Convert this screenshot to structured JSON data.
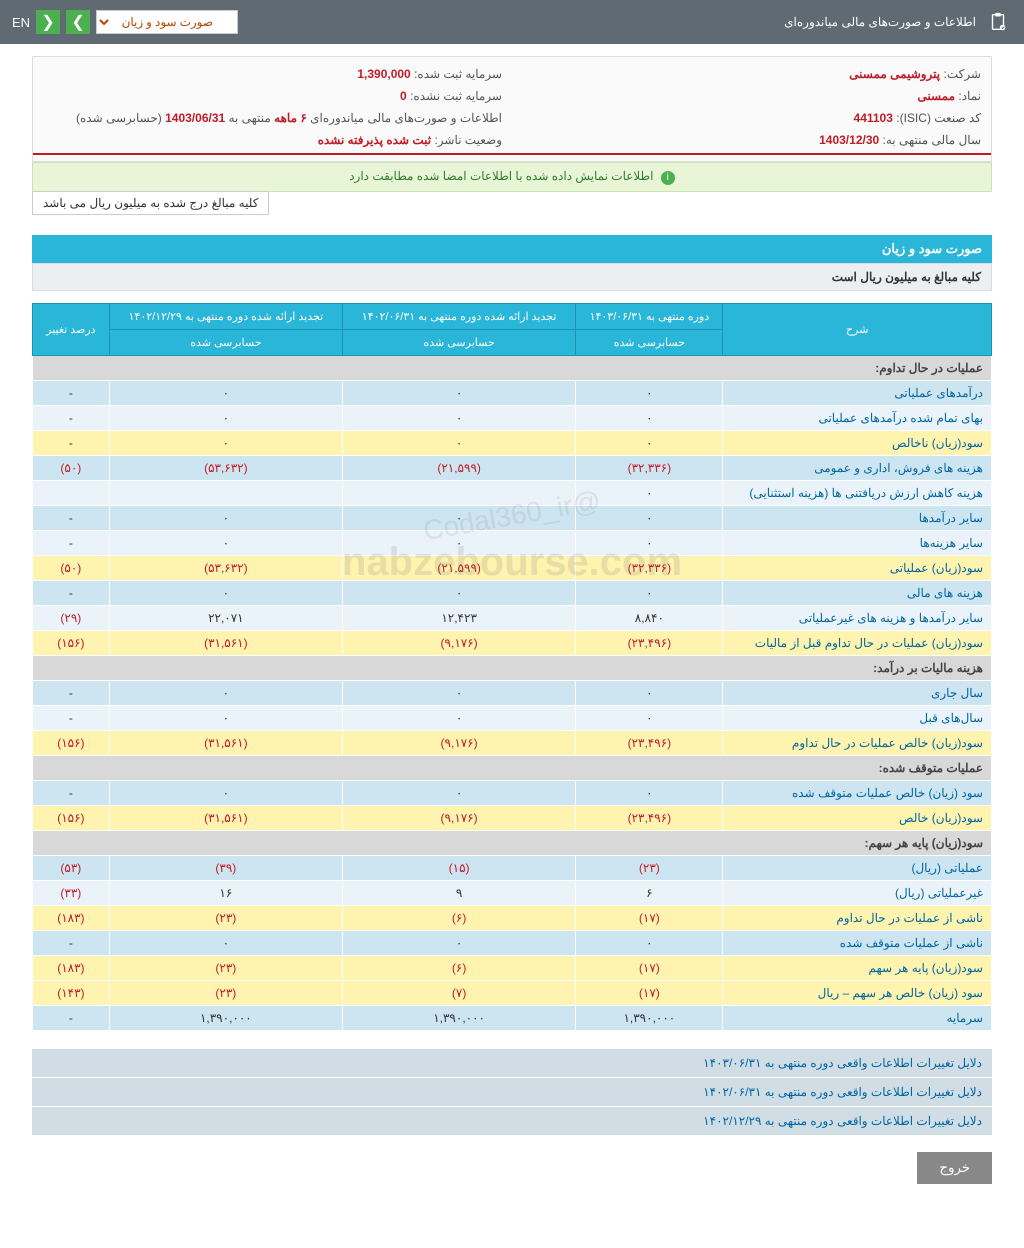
{
  "topbar": {
    "title": "اطلاعات و صورت‌های مالی میاندوره‌ای",
    "dropdown": "صورت سود و زیان",
    "lang": "EN"
  },
  "info": {
    "company_lbl": "شرکت:",
    "company_val": "پتروشیمی ممسنی",
    "capital_lbl": "سرمایه ثبت شده:",
    "capital_val": "1,390,000",
    "symbol_lbl": "نماد:",
    "symbol_val": "ممسنی",
    "uncap_lbl": "سرمایه ثبت نشده:",
    "uncap_val": "0",
    "isic_lbl": "کد صنعت (ISIC):",
    "isic_val": "441103",
    "report_lbl": "اطلاعات و صورت‌های مالی میاندوره‌ای",
    "report_period": "۶ ماهه",
    "report_end_lbl": "منتهی به",
    "report_end": "1403/06/31",
    "report_stat": "(حسابرسی شده)",
    "fy_lbl": "سال مالی منتهی به:",
    "fy_val": "1403/12/30",
    "status_lbl": "وضعیت ناشر:",
    "status_val": "ثبت شده پذیرفته نشده"
  },
  "notice": "اطلاعات نمایش داده شده با اطلاعات امضا شده مطابقت دارد",
  "unit_text": "کلیه مبالغ درج شده به میلیون ریال می باشد",
  "section_title": "صورت سود و زیان",
  "section_sub": "کلیه مبالغ به میلیون ریال است",
  "headers": {
    "desc": "شرح",
    "c1": "دوره منتهی به ۱۴۰۳/۰۶/۳۱",
    "c2": "تجدید ارائه شده دوره منتهی به ۱۴۰۲/۰۶/۳۱",
    "c3": "تجدید ارائه شده دوره منتهی به ۱۴۰۲/۱۲/۲۹",
    "c4": "درصد تغییر",
    "sub": "حسابرسی شده"
  },
  "rows": [
    {
      "type": "header",
      "desc": "عملیات در حال تداوم:"
    },
    {
      "type": "even",
      "desc": "درآمدهای عملیاتی",
      "c1": "۰",
      "c2": "۰",
      "c3": "۰",
      "c4": "-"
    },
    {
      "type": "odd",
      "desc": "بهای تمام شده درآمدهای عملیاتی",
      "c1": "۰",
      "c2": "۰",
      "c3": "۰",
      "c4": "-"
    },
    {
      "type": "yellow",
      "desc": "سود(زیان) ناخالص",
      "c1": "۰",
      "c2": "۰",
      "c3": "۰",
      "c4": "-"
    },
    {
      "type": "even",
      "desc": "هزینه های فروش، اداری و عمومی",
      "c1": "(۳۲,۳۳۶)",
      "c1n": true,
      "c2": "(۲۱,۵۹۹)",
      "c2n": true,
      "c3": "(۵۳,۶۳۲)",
      "c3n": true,
      "c4": "(۵۰)",
      "c4n": true
    },
    {
      "type": "odd",
      "desc": "هزینه کاهش ارزش دریافتنی ها (هزینه استثنایی)",
      "c1": "۰",
      "c2": "",
      "c3": "",
      "c4": ""
    },
    {
      "type": "even",
      "desc": "سایر درآمدها",
      "c1": "۰",
      "c2": "۰",
      "c3": "۰",
      "c4": "-"
    },
    {
      "type": "odd",
      "desc": "سایر هزینه‌ها",
      "c1": "۰",
      "c2": "۰",
      "c3": "۰",
      "c4": "-"
    },
    {
      "type": "yellow",
      "desc": "سود(زیان) عملیاتی",
      "c1": "(۳۲,۳۳۶)",
      "c1n": true,
      "c2": "(۲۱,۵۹۹)",
      "c2n": true,
      "c3": "(۵۳,۶۳۲)",
      "c3n": true,
      "c4": "(۵۰)",
      "c4n": true
    },
    {
      "type": "even",
      "desc": "هزینه های مالی",
      "c1": "۰",
      "c2": "۰",
      "c3": "۰",
      "c4": "-"
    },
    {
      "type": "odd",
      "desc": "سایر درآمدها و هزینه های غیرعملیاتی",
      "c1": "۸,۸۴۰",
      "c2": "۱۲,۴۲۳",
      "c3": "۲۲,۰۷۱",
      "c4": "(۲۹)",
      "c4n": true
    },
    {
      "type": "yellow",
      "desc": "سود(زیان) عملیات در حال تداوم قبل از مالیات",
      "c1": "(۲۳,۴۹۶)",
      "c1n": true,
      "c2": "(۹,۱۷۶)",
      "c2n": true,
      "c3": "(۳۱,۵۶۱)",
      "c3n": true,
      "c4": "(۱۵۶)",
      "c4n": true
    },
    {
      "type": "header",
      "desc": "هزینه مالیات بر درآمد:"
    },
    {
      "type": "even",
      "desc": "سال جاری",
      "c1": "۰",
      "c2": "۰",
      "c3": "۰",
      "c4": "-"
    },
    {
      "type": "odd",
      "desc": "سال‌های قبل",
      "c1": "۰",
      "c2": "۰",
      "c3": "۰",
      "c4": "-"
    },
    {
      "type": "yellow",
      "desc": "سود(زیان) خالص عملیات در حال تداوم",
      "c1": "(۲۳,۴۹۶)",
      "c1n": true,
      "c2": "(۹,۱۷۶)",
      "c2n": true,
      "c3": "(۳۱,۵۶۱)",
      "c3n": true,
      "c4": "(۱۵۶)",
      "c4n": true
    },
    {
      "type": "header",
      "desc": "عملیات متوقف شده:"
    },
    {
      "type": "even",
      "desc": "سود (زیان) خالص عملیات متوقف شده",
      "c1": "۰",
      "c2": "۰",
      "c3": "۰",
      "c4": "-"
    },
    {
      "type": "yellow",
      "desc": "سود(زیان) خالص",
      "c1": "(۲۳,۴۹۶)",
      "c1n": true,
      "c2": "(۹,۱۷۶)",
      "c2n": true,
      "c3": "(۳۱,۵۶۱)",
      "c3n": true,
      "c4": "(۱۵۶)",
      "c4n": true
    },
    {
      "type": "header",
      "desc": "سود(زیان) پایه هر سهم:"
    },
    {
      "type": "even",
      "desc": "عملیاتی (ریال)",
      "c1": "(۲۳)",
      "c1n": true,
      "c2": "(۱۵)",
      "c2n": true,
      "c3": "(۳۹)",
      "c3n": true,
      "c4": "(۵۳)",
      "c4n": true
    },
    {
      "type": "odd",
      "desc": "غیرعملیاتی (ریال)",
      "c1": "۶",
      "c2": "۹",
      "c3": "۱۶",
      "c4": "(۳۳)",
      "c4n": true
    },
    {
      "type": "yellow",
      "desc": "ناشی از عملیات در حال تداوم",
      "c1": "(۱۷)",
      "c1n": true,
      "c2": "(۶)",
      "c2n": true,
      "c3": "(۲۳)",
      "c3n": true,
      "c4": "(۱۸۳)",
      "c4n": true
    },
    {
      "type": "even",
      "desc": "ناشی از عملیات متوقف شده",
      "c1": "۰",
      "c2": "۰",
      "c3": "۰",
      "c4": "-"
    },
    {
      "type": "yellow",
      "desc": "سود(زیان) پایه هر سهم",
      "c1": "(۱۷)",
      "c1n": true,
      "c2": "(۶)",
      "c2n": true,
      "c3": "(۲۳)",
      "c3n": true,
      "c4": "(۱۸۳)",
      "c4n": true
    },
    {
      "type": "yellow",
      "desc": "سود (زیان) خالص هر سهم – ریال",
      "c1": "(۱۷)",
      "c1n": true,
      "c2": "(۷)",
      "c2n": true,
      "c3": "(۲۳)",
      "c3n": true,
      "c4": "(۱۴۳)",
      "c4n": true
    },
    {
      "type": "even",
      "desc": "سرمایه",
      "c1": "۱,۳۹۰,۰۰۰",
      "c2": "۱,۳۹۰,۰۰۰",
      "c3": "۱,۳۹۰,۰۰۰",
      "c4": "-"
    }
  ],
  "footer_rows": [
    "دلایل تغییرات اطلاعات واقعی دوره منتهی به ۱۴۰۳/۰۶/۳۱",
    "دلایل تغییرات اطلاعات واقعی دوره منتهی به ۱۴۰۲/۰۶/۳۱",
    "دلایل تغییرات اطلاعات واقعی دوره منتهی به ۱۴۰۲/۱۲/۲۹"
  ],
  "exit": "خروج",
  "watermark1": "nabzebourse.com",
  "watermark2": "@Codal360_ir",
  "colors": {
    "header_bg": "#29b6d8",
    "row_even": "#cde5f0",
    "row_odd": "#eaf3f9",
    "row_yellow": "#fff3b0",
    "row_header": "#d8d8d8",
    "neg": "#c01c28",
    "link": "#0066a0"
  }
}
